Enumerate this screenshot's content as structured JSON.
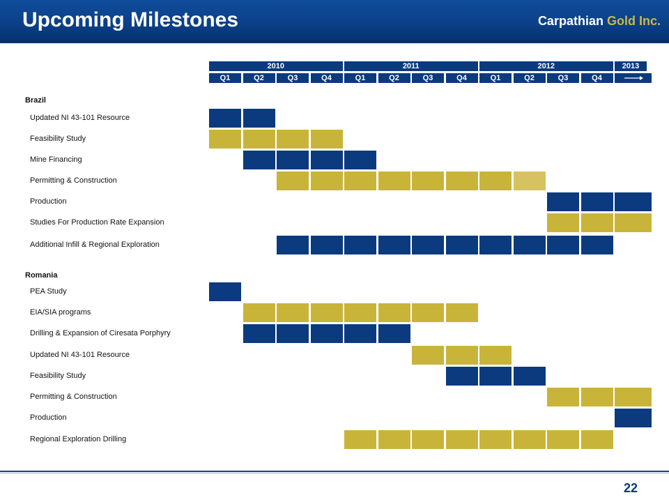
{
  "header": {
    "title": "Upcoming Milestones",
    "brand_part1": "Carpathian",
    "brand_part2": "Gold Inc."
  },
  "colors": {
    "navy": "#0b3a7e",
    "gold": "#c9b43a",
    "lightgold": "#d6c260"
  },
  "timeline": {
    "years": [
      "2010",
      "2011",
      "2012",
      "2013"
    ],
    "quarters": [
      "Q1",
      "Q2",
      "Q3",
      "Q4",
      "Q1",
      "Q2",
      "Q3",
      "Q4",
      "Q1",
      "Q2",
      "Q3",
      "Q4"
    ],
    "continuation_icon": "arrow-right-icon"
  },
  "sections": [
    {
      "name": "Brazil",
      "tasks": [
        {
          "label": "Updated NI 43-101 Resource",
          "segments": [
            {
              "start": 0,
              "end": 2,
              "color": "navy"
            }
          ]
        },
        {
          "label": "Feasibility Study",
          "segments": [
            {
              "start": 0,
              "end": 4,
              "color": "gold"
            }
          ]
        },
        {
          "label": "Mine Financing",
          "segments": [
            {
              "start": 1,
              "end": 5,
              "color": "navy"
            }
          ]
        },
        {
          "label": "Permitting & Construction",
          "segments": [
            {
              "start": 2,
              "end": 9,
              "color": "gold"
            },
            {
              "start": 9,
              "end": 10,
              "color": "lightgold"
            }
          ]
        },
        {
          "label": "Production",
          "segments": [
            {
              "start": 10,
              "end": 13,
              "color": "navy"
            }
          ]
        },
        {
          "label": "Studies For Production Rate Expansion",
          "segments": [
            {
              "start": 10,
              "end": 13,
              "color": "gold"
            }
          ]
        },
        {
          "label": "Additional Infill & Regional Exploration",
          "segments": [
            {
              "start": 2,
              "end": 12,
              "color": "navy"
            }
          ]
        }
      ]
    },
    {
      "name": "Romania",
      "tasks": [
        {
          "label": "PEA Study",
          "segments": [
            {
              "start": 0,
              "end": 1,
              "color": "navy"
            }
          ]
        },
        {
          "label": "EIA/SIA programs",
          "segments": [
            {
              "start": 1,
              "end": 8,
              "color": "gold"
            }
          ]
        },
        {
          "label": "Drilling & Expansion of Ciresata Porphyry",
          "segments": [
            {
              "start": 1,
              "end": 6,
              "color": "navy"
            }
          ]
        },
        {
          "label": "Updated NI 43-101 Resource",
          "segments": [
            {
              "start": 6,
              "end": 9,
              "color": "gold"
            }
          ]
        },
        {
          "label": "Feasibility Study",
          "segments": [
            {
              "start": 7,
              "end": 10,
              "color": "navy"
            }
          ]
        },
        {
          "label": "Permitting & Construction",
          "segments": [
            {
              "start": 10,
              "end": 13,
              "color": "gold"
            }
          ]
        },
        {
          "label": "Production",
          "segments": [
            {
              "start": 12,
              "end": 13,
              "color": "navy"
            }
          ]
        },
        {
          "label": "Regional Exploration Drilling",
          "segments": [
            {
              "start": 4,
              "end": 12,
              "color": "gold"
            }
          ]
        }
      ]
    }
  ],
  "footer": {
    "page_number": "22"
  }
}
